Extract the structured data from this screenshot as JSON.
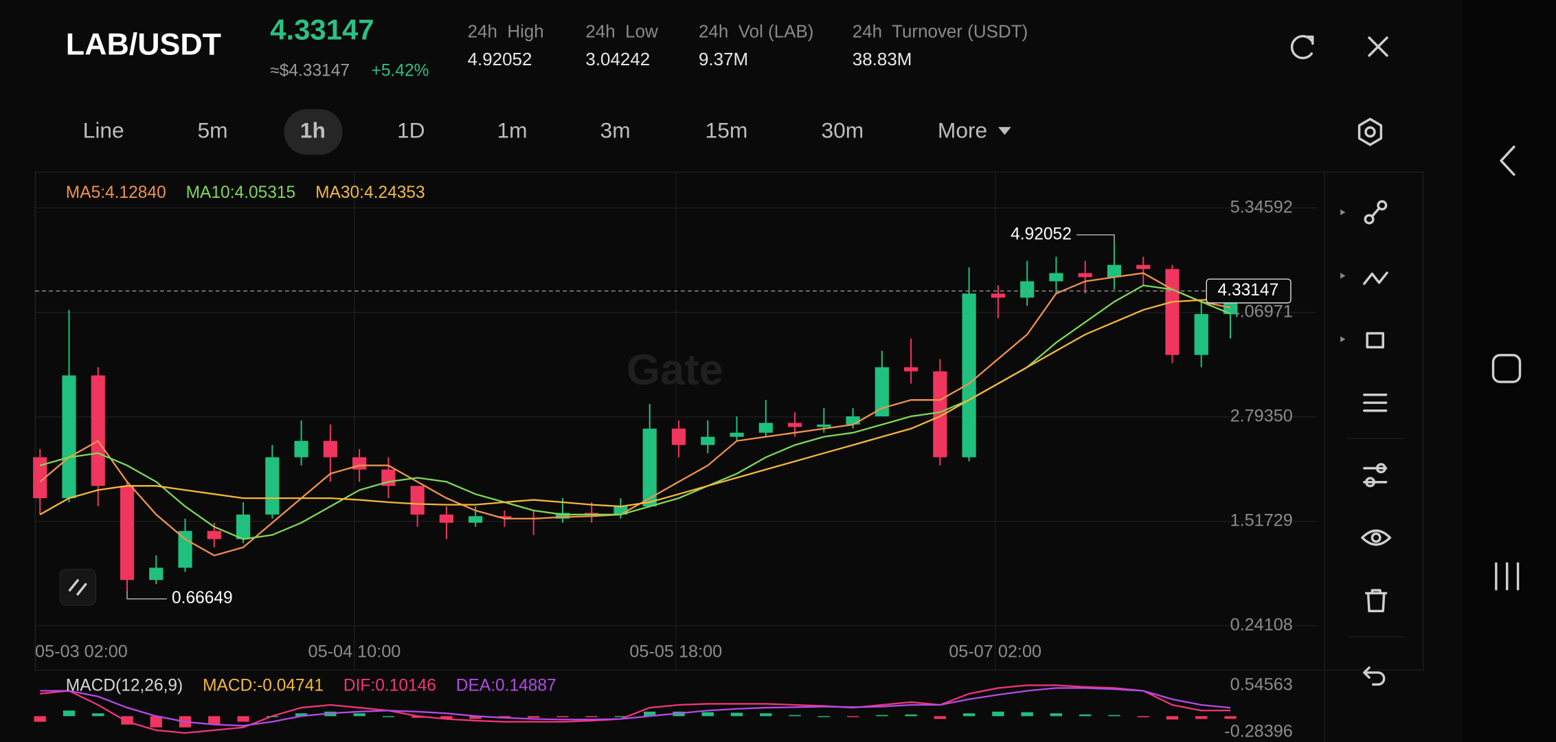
{
  "header": {
    "pair": "LAB/USDT",
    "price": "4.33147",
    "approx": "≈$4.33147",
    "change": "+5.42%",
    "stats": [
      {
        "label": "24h  High",
        "value": "4.92052"
      },
      {
        "label": "24h  Low",
        "value": "3.04242"
      },
      {
        "label": "24h  Vol (LAB)",
        "value": "9.37M"
      },
      {
        "label": "24h  Turnover (USDT)",
        "value": "38.83M"
      }
    ]
  },
  "timeframes": [
    "Line",
    "5m",
    "1h",
    "1D",
    "1m",
    "3m",
    "15m",
    "30m",
    "More"
  ],
  "watermark": "Gate",
  "chart_data": [
    {
      "type": "candlestick",
      "open": [
        2.3,
        1.8,
        3.3,
        1.95,
        0.8,
        0.95,
        1.4,
        1.3,
        1.6,
        2.3,
        2.5,
        2.3,
        2.15,
        1.95,
        1.6,
        1.5,
        1.58,
        1.56,
        1.55,
        1.62,
        1.6,
        1.7,
        2.65,
        2.45,
        2.55,
        2.6,
        2.72,
        2.67,
        2.7,
        2.8,
        3.4,
        3.35,
        2.3,
        4.3,
        4.25,
        4.45,
        4.55,
        4.5,
        4.65,
        4.6,
        3.55,
        4.05
      ],
      "high": [
        2.4,
        4.1,
        3.4,
        2.0,
        1.1,
        1.55,
        1.5,
        1.75,
        2.45,
        2.75,
        2.7,
        2.4,
        2.3,
        1.9,
        1.7,
        1.7,
        1.65,
        1.65,
        1.8,
        1.75,
        1.8,
        2.95,
        2.75,
        2.75,
        2.8,
        3.0,
        2.85,
        2.9,
        2.9,
        3.6,
        3.75,
        3.5,
        4.62,
        4.4,
        4.7,
        4.75,
        4.7,
        4.92052,
        4.75,
        4.65,
        4.2,
        4.35
      ],
      "low": [
        1.6,
        1.75,
        1.7,
        0.66649,
        0.75,
        0.9,
        1.2,
        1.25,
        1.55,
        2.2,
        2.0,
        2.0,
        1.8,
        1.45,
        1.3,
        1.45,
        1.45,
        1.35,
        1.5,
        1.5,
        1.55,
        1.7,
        2.3,
        2.35,
        2.5,
        2.55,
        2.55,
        2.6,
        2.65,
        2.8,
        3.2,
        2.2,
        2.25,
        4.0,
        4.15,
        4.3,
        4.3,
        4.35,
        4.4,
        3.45,
        3.4,
        3.75
      ],
      "close": [
        1.8,
        3.3,
        1.95,
        0.8,
        0.95,
        1.4,
        1.3,
        1.6,
        2.3,
        2.5,
        2.3,
        2.15,
        1.95,
        1.6,
        1.5,
        1.58,
        1.56,
        1.55,
        1.62,
        1.6,
        1.7,
        2.65,
        2.45,
        2.55,
        2.6,
        2.72,
        2.67,
        2.7,
        2.8,
        3.4,
        3.35,
        2.3,
        4.3,
        4.25,
        4.45,
        4.55,
        4.5,
        4.65,
        4.6,
        3.55,
        4.05,
        4.33147
      ],
      "up_color": "#20c07e",
      "down_color": "#f0355e",
      "series": [
        {
          "name": "MA5:4.12840",
          "color": "#f0934f",
          "values": [
            2.0,
            2.3,
            2.5,
            2.0,
            1.6,
            1.3,
            1.1,
            1.2,
            1.5,
            1.8,
            2.1,
            2.2,
            2.2,
            2.0,
            1.8,
            1.65,
            1.55,
            1.55,
            1.57,
            1.58,
            1.6,
            1.8,
            2.0,
            2.2,
            2.5,
            2.55,
            2.6,
            2.65,
            2.7,
            2.9,
            3.0,
            3.0,
            3.2,
            3.5,
            3.8,
            4.3,
            4.45,
            4.5,
            4.55,
            4.35,
            4.2,
            4.1284
          ]
        },
        {
          "name": "MA10:4.05315",
          "color": "#7ed957",
          "values": [
            2.2,
            2.3,
            2.35,
            2.2,
            2.0,
            1.7,
            1.45,
            1.3,
            1.35,
            1.5,
            1.7,
            1.9,
            2.0,
            2.05,
            2.0,
            1.85,
            1.75,
            1.65,
            1.6,
            1.6,
            1.6,
            1.7,
            1.8,
            1.95,
            2.1,
            2.3,
            2.45,
            2.55,
            2.6,
            2.7,
            2.8,
            2.85,
            3.0,
            3.2,
            3.4,
            3.7,
            3.95,
            4.2,
            4.4,
            4.35,
            4.2,
            4.05315
          ]
        },
        {
          "name": "MA30:4.24353",
          "color": "#f5b73d",
          "values": [
            1.6,
            1.8,
            1.9,
            1.95,
            1.95,
            1.9,
            1.85,
            1.8,
            1.8,
            1.8,
            1.8,
            1.78,
            1.75,
            1.73,
            1.72,
            1.72,
            1.75,
            1.78,
            1.75,
            1.72,
            1.7,
            1.75,
            1.85,
            1.95,
            2.05,
            2.15,
            2.25,
            2.35,
            2.45,
            2.55,
            2.65,
            2.8,
            3.0,
            3.2,
            3.4,
            3.6,
            3.8,
            3.95,
            4.1,
            4.2,
            4.22,
            4.24353
          ]
        }
      ],
      "xlim": [
        -0.17,
        43.97
      ],
      "xticks": [
        {
          "value": -0.17,
          "label": "05-03 02:00"
        },
        {
          "value": 10.83,
          "label": "05-04 10:00"
        },
        {
          "value": 21.9,
          "label": "05-05 18:00"
        },
        {
          "value": 32.9,
          "label": "05-07 02:00"
        }
      ],
      "ylim": [
        0.13,
        5.79
      ],
      "yticks": [
        5.34592,
        4.06971,
        {
          "value": 2.7935,
          "label": "2.79350"
        },
        1.51729,
        0.24108
      ],
      "grid": true
    },
    {
      "type": "macd",
      "title": "MACD(12,26,9)",
      "series": [
        {
          "name": "MACD:-0.04741",
          "kind": "histogram",
          "up_color": "#20c07e",
          "down_color": "#f0355e",
          "values": [
            -0.1,
            0.1,
            0.05,
            -0.15,
            -0.2,
            -0.2,
            -0.15,
            -0.1,
            0.0,
            0.05,
            0.08,
            0.05,
            0.0,
            -0.03,
            -0.05,
            -0.05,
            -0.04,
            -0.03,
            -0.02,
            -0.02,
            0.0,
            0.08,
            0.08,
            0.07,
            0.06,
            0.05,
            0.02,
            0.0,
            -0.01,
            0.02,
            0.03,
            -0.05,
            0.05,
            0.08,
            0.07,
            0.05,
            0.03,
            0.02,
            -0.02,
            -0.06,
            -0.05,
            -0.04741
          ]
        },
        {
          "name": "DIF:0.10146",
          "kind": "line",
          "color": "#f0357a",
          "values": [
            0.4,
            0.45,
            0.2,
            -0.1,
            -0.25,
            -0.3,
            -0.25,
            -0.2,
            0.0,
            0.15,
            0.2,
            0.15,
            0.1,
            0.0,
            -0.05,
            -0.08,
            -0.1,
            -0.1,
            -0.1,
            -0.08,
            -0.05,
            0.15,
            0.2,
            0.22,
            0.22,
            0.22,
            0.2,
            0.18,
            0.15,
            0.2,
            0.25,
            0.2,
            0.4,
            0.5,
            0.55,
            0.55,
            0.52,
            0.5,
            0.45,
            0.2,
            0.1,
            0.10146
          ]
        },
        {
          "name": "DEA:0.14887",
          "kind": "line",
          "color": "#b44be6",
          "values": [
            0.45,
            0.45,
            0.35,
            0.15,
            0.0,
            -0.1,
            -0.15,
            -0.17,
            -0.1,
            0.0,
            0.05,
            0.08,
            0.1,
            0.08,
            0.05,
            0.0,
            -0.03,
            -0.05,
            -0.06,
            -0.06,
            -0.05,
            0.0,
            0.05,
            0.1,
            0.13,
            0.15,
            0.16,
            0.17,
            0.16,
            0.17,
            0.2,
            0.2,
            0.3,
            0.38,
            0.45,
            0.5,
            0.5,
            0.48,
            0.45,
            0.3,
            0.2,
            0.14887
          ]
        }
      ],
      "title_color": "#d8d8d8",
      "xlim": [
        -0.17,
        43.97
      ],
      "ylim": [
        -0.46,
        0.74
      ],
      "yticks": [
        0.54563,
        -0.28396
      ]
    }
  ]
}
